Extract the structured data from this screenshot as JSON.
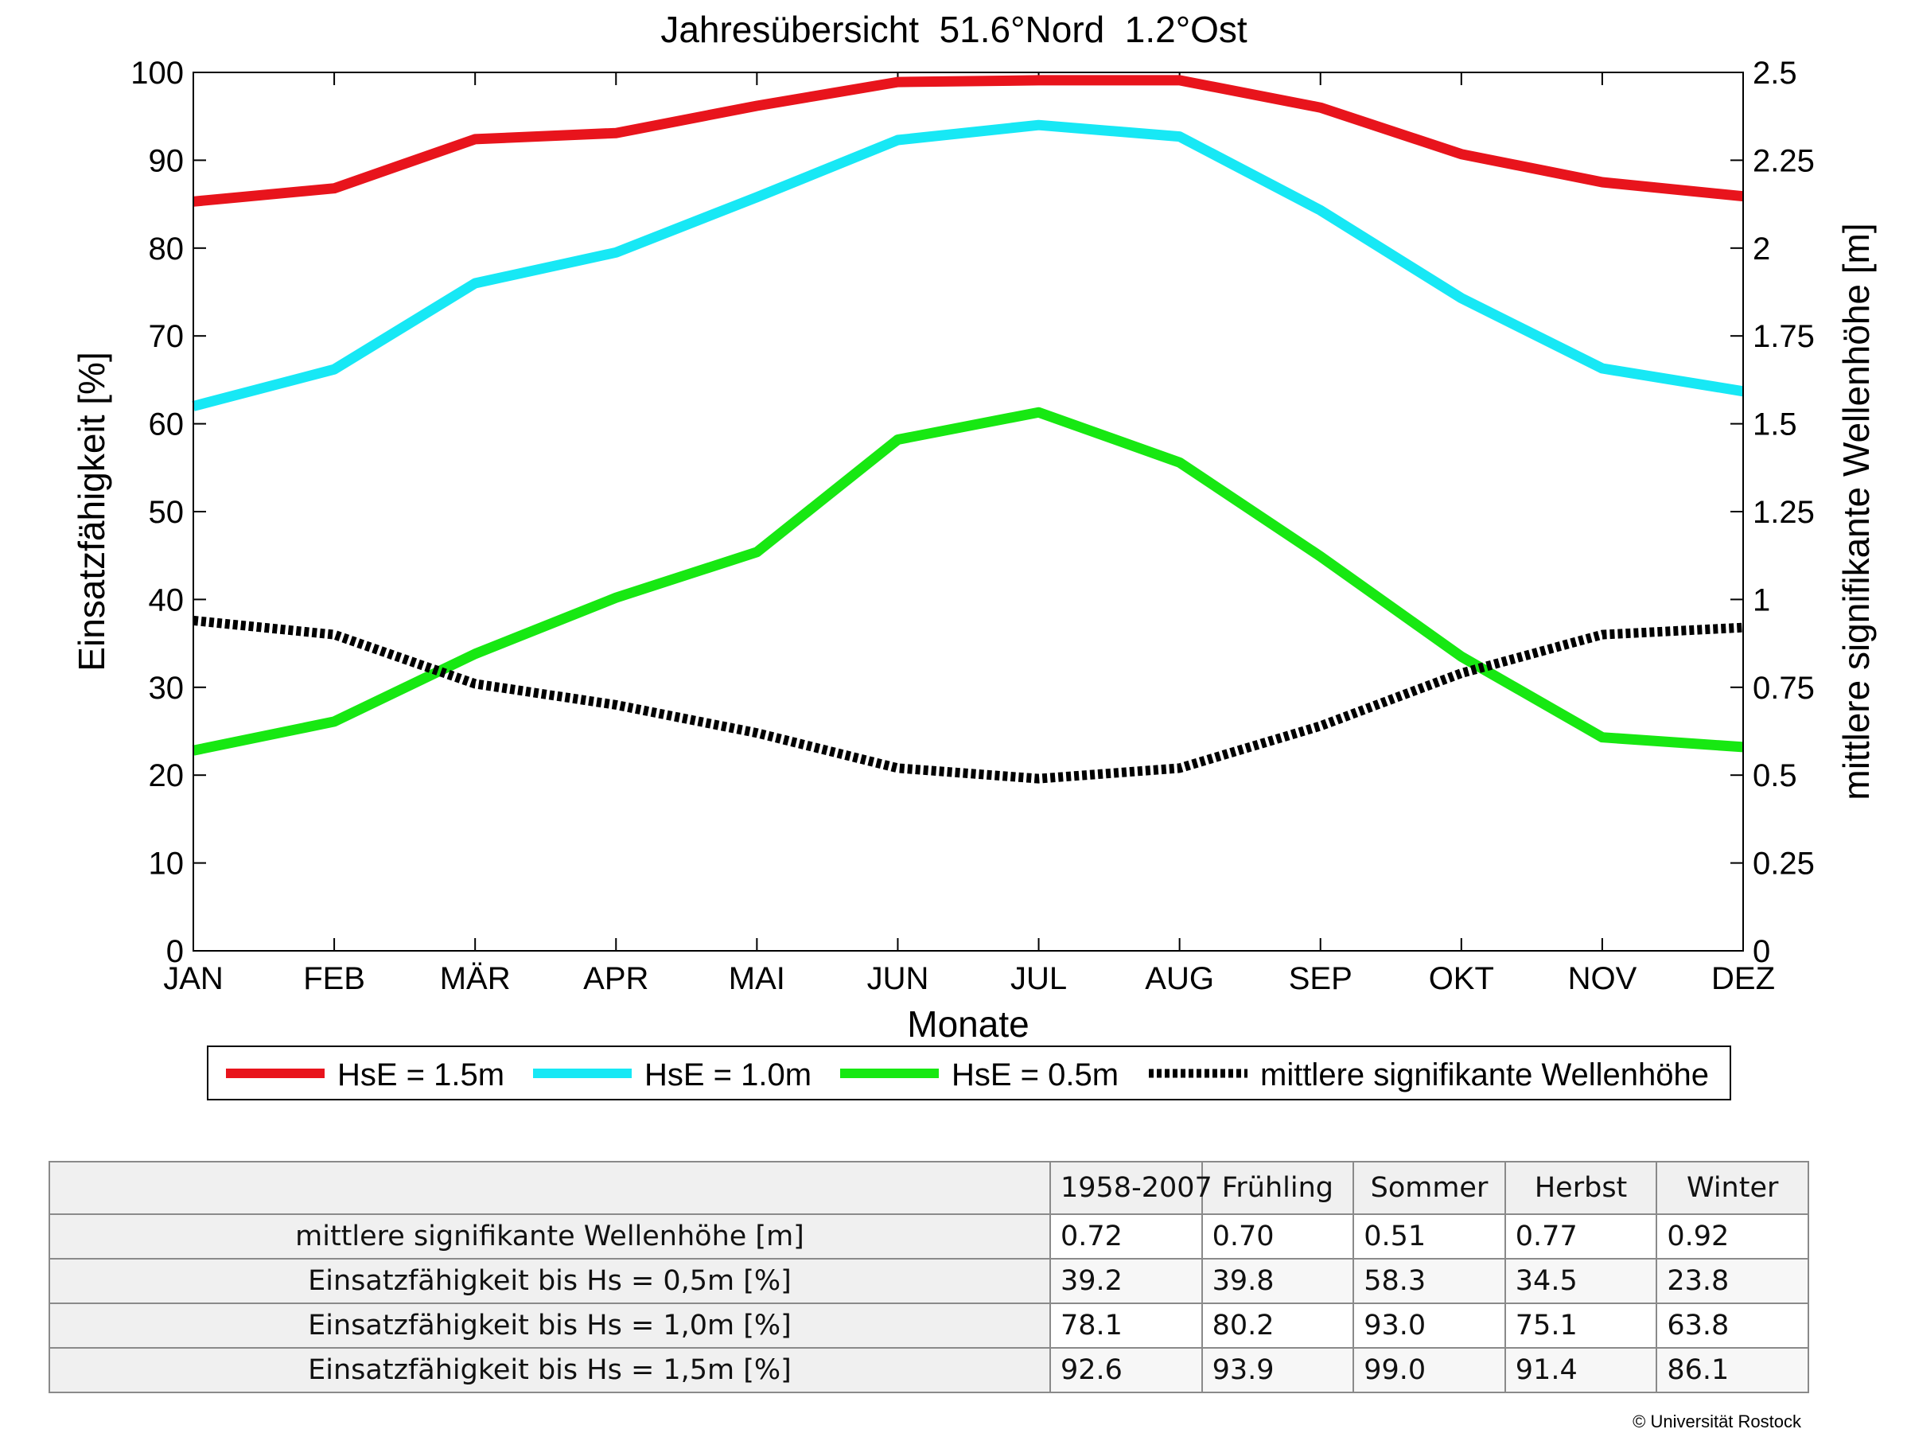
{
  "chart_data": {
    "type": "line",
    "title": "Jahresübersicht  51.6°Nord  1.2°Ost",
    "xlabel": "Monate",
    "ylabel": "Einsatzfähigkeit [%]",
    "y2label": "mittlere signifikante Wellenhöhe [m]",
    "categories": [
      "JAN",
      "FEB",
      "MÄR",
      "APR",
      "MAI",
      "JUN",
      "JUL",
      "AUG",
      "SEP",
      "OKT",
      "NOV",
      "DEZ"
    ],
    "ylim": [
      0,
      100
    ],
    "y2lim": [
      0,
      2.5
    ],
    "yticks": [
      "0",
      "10",
      "20",
      "30",
      "40",
      "50",
      "60",
      "70",
      "80",
      "90",
      "100"
    ],
    "y2ticks": [
      "0",
      "0.25",
      "0.5",
      "0.75",
      "1",
      "1.25",
      "1.5",
      "1.75",
      "2",
      "2.25",
      "2.5"
    ],
    "grid": false,
    "legend_position": "bottom",
    "series": [
      {
        "name": "HsE = 1.5m",
        "axis": "left",
        "color": "#e8141c",
        "style": "solid",
        "values": [
          85.3,
          86.8,
          92.4,
          93.1,
          96.2,
          98.9,
          99.1,
          99.1,
          96.0,
          90.7,
          87.5,
          85.9
        ]
      },
      {
        "name": "HsE = 1.0m",
        "axis": "left",
        "color": "#17e8f5",
        "style": "solid",
        "values": [
          62.0,
          66.2,
          76.0,
          79.5,
          85.8,
          92.3,
          94.0,
          92.7,
          84.3,
          74.3,
          66.3,
          63.7
        ]
      },
      {
        "name": "HsE = 0.5m",
        "axis": "left",
        "color": "#17e812",
        "style": "solid",
        "values": [
          22.8,
          26.1,
          33.8,
          40.2,
          45.4,
          58.2,
          61.3,
          55.6,
          44.9,
          33.5,
          24.3,
          23.2
        ]
      },
      {
        "name": "mittlere signifikante Wellenhöhe",
        "axis": "right",
        "color": "#000000",
        "style": "dotted",
        "values": [
          0.94,
          0.9,
          0.76,
          0.7,
          0.62,
          0.52,
          0.49,
          0.52,
          0.64,
          0.79,
          0.9,
          0.92
        ]
      }
    ]
  },
  "table": {
    "columns": [
      "1958-2007",
      "Frühling",
      "Sommer",
      "Herbst",
      "Winter"
    ],
    "rows": [
      {
        "label": "mittlere signifikante Wellenhöhe [m]",
        "values": [
          "0.72",
          "0.70",
          "0.51",
          "0.77",
          "0.92"
        ]
      },
      {
        "label": "Einsatzfähigkeit bis Hs = 0,5m [%]",
        "values": [
          "39.2",
          "39.8",
          "58.3",
          "34.5",
          "23.8"
        ]
      },
      {
        "label": "Einsatzfähigkeit bis Hs = 1,0m [%]",
        "values": [
          "78.1",
          "80.2",
          "93.0",
          "75.1",
          "63.8"
        ]
      },
      {
        "label": "Einsatzfähigkeit bis Hs = 1,5m [%]",
        "values": [
          "92.6",
          "93.9",
          "99.0",
          "91.4",
          "86.1"
        ]
      }
    ]
  },
  "copyright": "© Universität Rostock"
}
